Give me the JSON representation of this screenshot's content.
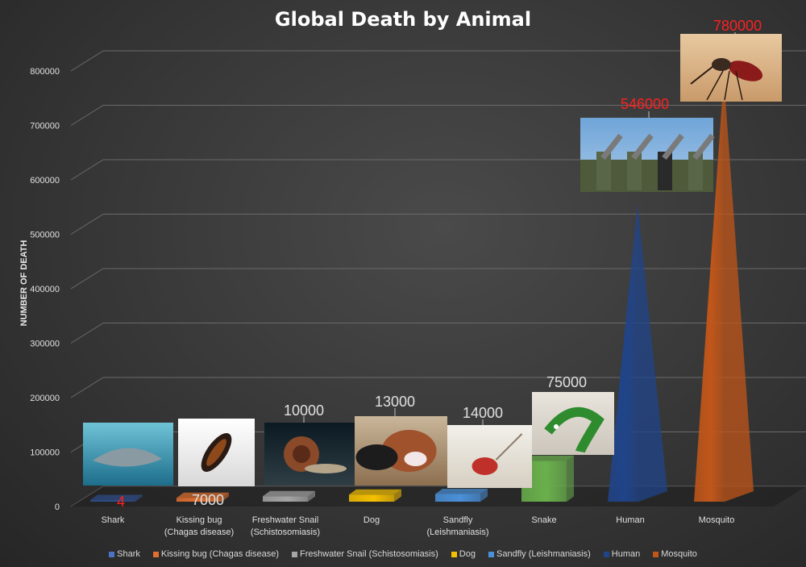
{
  "chart_data": {
    "type": "bar",
    "title": "Global Death by Animal",
    "xlabel": "",
    "ylabel": "NUMBER OF DEATH",
    "ylim": [
      0,
      800000
    ],
    "yticks": [
      0,
      100000,
      200000,
      300000,
      400000,
      500000,
      600000,
      700000,
      800000
    ],
    "grid": true,
    "legend_position": "bottom",
    "categories": [
      "Shark",
      "Kissing bug (Chagas disease)",
      "Freshwater Snail (Schistosomiasis)",
      "Dog",
      "Sandfly (Leishmaniasis)",
      "Snake",
      "Human",
      "Mosquito"
    ],
    "values": [
      4,
      7000,
      10000,
      13000,
      14000,
      75000,
      546000,
      780000
    ],
    "data_labels": [
      "4",
      "7000",
      "10000",
      "13000",
      "14000",
      "75000",
      "546000",
      "780000"
    ],
    "data_label_colors": [
      "#ff2020",
      "#e0e0e0",
      "#e0e0e0",
      "#e0e0e0",
      "#e0e0e0",
      "#e0e0e0",
      "#ff2020",
      "#ff2020"
    ],
    "series_colors": [
      "#2f4e8c",
      "#e07030",
      "#a5a5a5",
      "#f5c000",
      "#4a90d9",
      "#6ab04c",
      "#20448a",
      "#c0561a"
    ],
    "legend": [
      "Shark",
      "Kissing bug (Chagas disease)",
      "Freshwater Snail (Schistosomiasis)",
      "Dog",
      "Sandfly (Leishmaniasis)",
      "Human",
      "Mosquito"
    ],
    "legend_colors": [
      "#4a73c4",
      "#e07030",
      "#a5a5a5",
      "#f5c000",
      "#4a90d9",
      "#20448a",
      "#c0561a"
    ],
    "images": [
      "shark photo",
      "kissing bug photo",
      "freshwater snail photo",
      "dog photo",
      "sandfly photo",
      "snake photo",
      "soldiers photo",
      "mosquito photo"
    ]
  }
}
